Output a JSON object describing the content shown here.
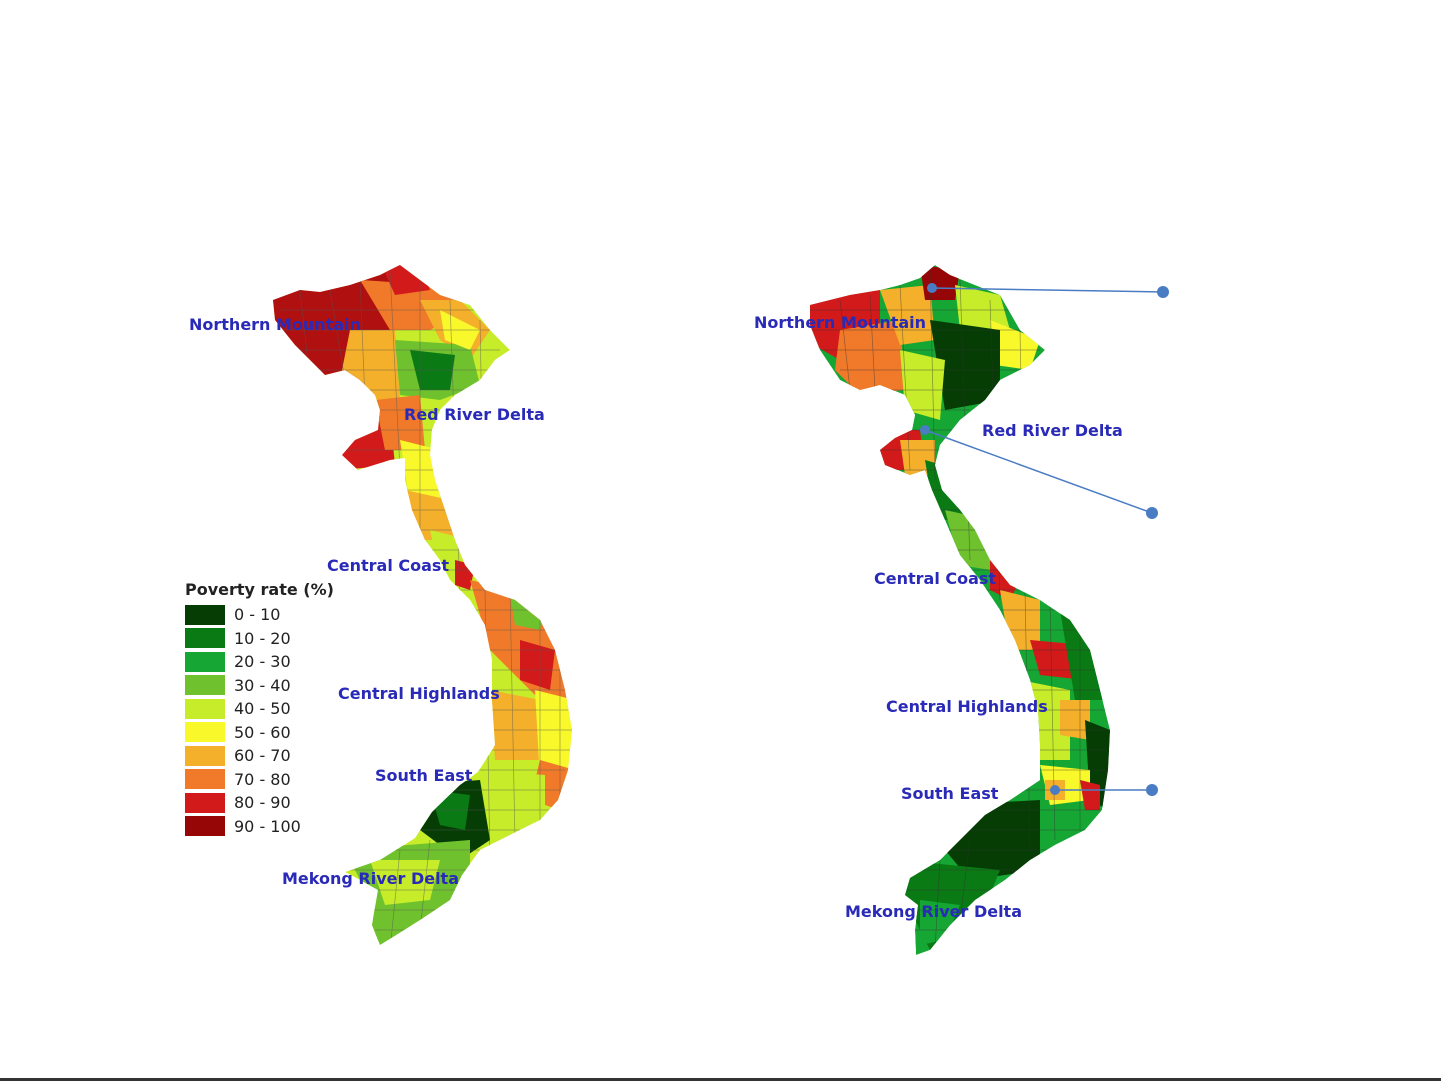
{
  "legend": {
    "title": "Poverty rate (%)",
    "items": [
      {
        "label": "0 - 10",
        "color": "#053d05"
      },
      {
        "label": "10 - 20",
        "color": "#0a7a14"
      },
      {
        "label": "20 - 30",
        "color": "#16a634"
      },
      {
        "label": "30 - 40",
        "color": "#6fc22d"
      },
      {
        "label": "40 - 50",
        "color": "#c6ec2a"
      },
      {
        "label": "50 - 60",
        "color": "#f8f82a"
      },
      {
        "label": "60 - 70",
        "color": "#f4b02a"
      },
      {
        "label": "70 - 80",
        "color": "#f07a2a"
      },
      {
        "label": "80 - 90",
        "color": "#d21a1a"
      },
      {
        "label": "90 - 100",
        "color": "#960606"
      }
    ]
  },
  "left_map": {
    "labels": {
      "northern_mountain": "Northern Mountain",
      "red_river_delta": "Red River Delta",
      "central_coast": "Central Coast",
      "central_highlands": "Central Highlands",
      "south_east": "South East",
      "mekong_river_delta": "Mekong River Delta"
    }
  },
  "right_map": {
    "labels": {
      "northern_mountain": "Northern Mountain",
      "red_river_delta": "Red River Delta",
      "central_coast": "Central Coast",
      "central_highlands": "Central Highlands",
      "south_east": "South East",
      "mekong_river_delta": "Mekong River Delta"
    }
  },
  "colors": {
    "label_text": "#2a2ab8",
    "callout": "#4a7cc4",
    "border": "#333333"
  }
}
